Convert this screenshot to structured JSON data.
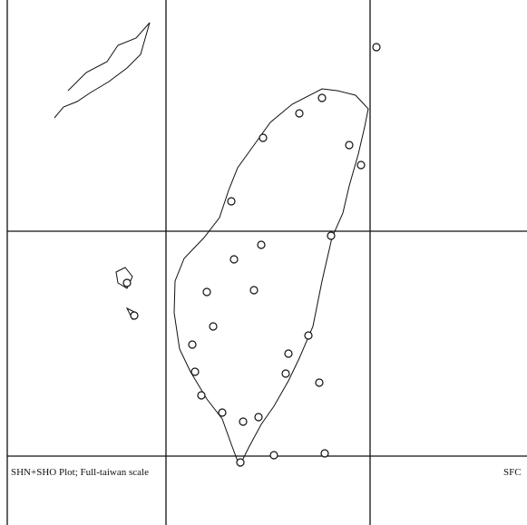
{
  "caption": "SHN+SHO Plot; Full-taiwan scale",
  "corner_label": "SFC"
}
